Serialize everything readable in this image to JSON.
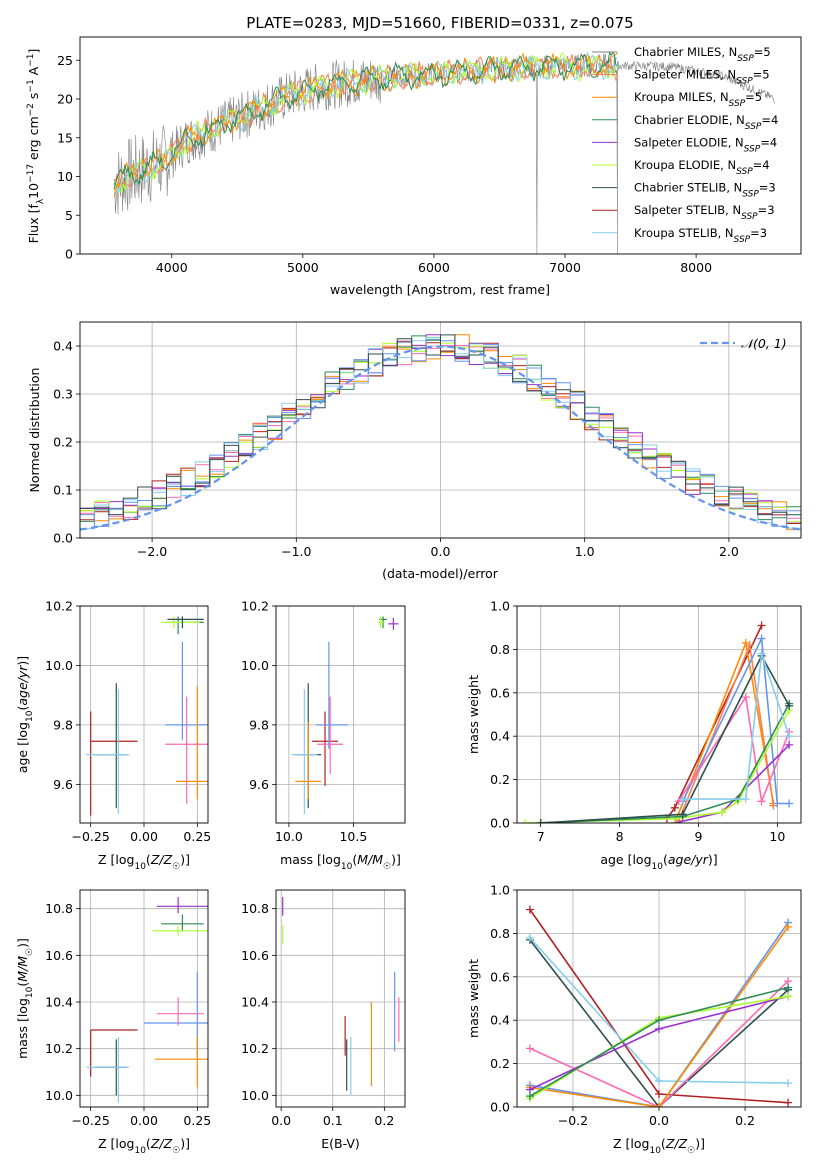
{
  "title": "PLATE=0283, MJD=51660, FIBERID=0331, z=0.075",
  "colors": {
    "C1": "#7f7f7f",
    "C2": "#ff7f50",
    "C3": "#ff8c00",
    "C4": "#2e8b57",
    "C5": "#9932cc",
    "C6": "#adff2f",
    "C7": "#2f4f4f",
    "C8": "#b22222",
    "C9": "#87ceeb",
    "gauss": "#6495ed",
    "pink": "#ff69b4",
    "blue": "#6495ed"
  },
  "chart_data": [
    {
      "id": "spectrum",
      "type": "line",
      "xlabel": "wavelength [Angstrom, rest frame]",
      "ylabel": "Flux [f_λ10^-17 erg cm^-2 s^-1 A^-1]",
      "xlim": [
        3300,
        8800
      ],
      "ylim": [
        0,
        28
      ],
      "xticks": [
        4000,
        5000,
        6000,
        7000,
        8000
      ],
      "yticks": [
        0,
        5,
        10,
        15,
        20,
        25
      ],
      "legend_position": "top-right",
      "legend": [
        {
          "name": "Chabrier MILES, N_SSP=5",
          "color": "C1"
        },
        {
          "name": "Salpeter MILES, N_SSP=5",
          "color": "C2"
        },
        {
          "name": "Kroupa MILES, N_SSP=5",
          "color": "C3"
        },
        {
          "name": "Chabrier ELODIE, N_SSP=4",
          "color": "C4"
        },
        {
          "name": "Salpeter ELODIE, N_SSP=4",
          "color": "C5"
        },
        {
          "name": "Kroupa ELODIE, N_SSP=4",
          "color": "C6"
        },
        {
          "name": "Chabrier STELIB, N_SSP=3",
          "color": "C7"
        },
        {
          "name": "Salpeter STELIB, N_SSP=3",
          "color": "C8"
        },
        {
          "name": "Kroupa STELIB, N_SSP=3",
          "color": "C9"
        }
      ],
      "continuum": [
        [
          3560,
          9
        ],
        [
          3650,
          10
        ],
        [
          3800,
          11
        ],
        [
          3950,
          12
        ],
        [
          4100,
          14.5
        ],
        [
          4300,
          16
        ],
        [
          4500,
          17.5
        ],
        [
          4700,
          19
        ],
        [
          4900,
          20.5
        ],
        [
          5100,
          21.5
        ],
        [
          5300,
          22
        ],
        [
          5500,
          22.5
        ],
        [
          5800,
          23
        ],
        [
          6200,
          23.5
        ],
        [
          6600,
          24
        ],
        [
          7000,
          24.2
        ],
        [
          7400,
          24.3
        ],
        [
          7800,
          24.2
        ],
        [
          8200,
          23
        ],
        [
          8600,
          20
        ]
      ]
    },
    {
      "id": "residuals",
      "type": "line",
      "xlabel": "(data-model)/error",
      "ylabel": "Normed distribution",
      "xlim": [
        -2.5,
        2.5
      ],
      "ylim": [
        0,
        0.45
      ],
      "xticks": [
        -2,
        -1,
        0,
        1,
        2
      ],
      "yticks": [
        0.0,
        0.1,
        0.2,
        0.3,
        0.4
      ],
      "legend": [
        "𝒩(0, 1)"
      ],
      "hist_bin_width": 0.1,
      "hist_colors": [
        "#ff69b4",
        "#ff8c00",
        "#2e8b57",
        "#9932cc",
        "#adff2f",
        "#b22222",
        "#87ceeb",
        "#6495ed",
        "#2f4f4f"
      ]
    },
    {
      "id": "age_vs_Z",
      "type": "scatter",
      "xlabel": "Z [log10(Z/Z☉)]",
      "ylabel": "age [log10(age/yr)]",
      "xlim": [
        -0.3,
        0.3
      ],
      "ylim": [
        9.47,
        10.2
      ],
      "xticks": [
        -0.25,
        0.0,
        0.25
      ],
      "yticks": [
        9.6,
        9.8,
        10.0,
        10.2
      ],
      "points": [
        {
          "x": -0.25,
          "y": 9.745,
          "xerr": [
            0,
            0.22
          ],
          "yerr": [
            0.25,
            0.1
          ],
          "c": "C8"
        },
        {
          "x": -0.13,
          "y": 9.7,
          "xerr": [
            0.1,
            0.05
          ],
          "yerr": [
            0.18,
            0.24
          ],
          "c": "C7"
        },
        {
          "x": -0.12,
          "y": 9.7,
          "xerr": [
            0.15,
            0.05
          ],
          "yerr": [
            0.2,
            0.22
          ],
          "c": "C9"
        },
        {
          "x": 0.18,
          "y": 9.8,
          "xerr": [
            0.08,
            0.12
          ],
          "yerr": [
            0.05,
            0.28
          ],
          "c": "blue"
        },
        {
          "x": 0.2,
          "y": 9.735,
          "xerr": [
            0.1,
            0.1
          ],
          "yerr": [
            0.2,
            0.16
          ],
          "c": "pink"
        },
        {
          "x": 0.25,
          "y": 9.61,
          "xerr": [
            0.1,
            0.05
          ],
          "yerr": [
            0.06,
            0.32
          ],
          "c": "C3"
        },
        {
          "x": 0.16,
          "y": 10.145,
          "xerr": [
            0.05,
            0.12
          ],
          "yerr": [
            0.04,
            0.02
          ],
          "c": "C4"
        },
        {
          "x": 0.14,
          "y": 10.145,
          "xerr": [
            0.06,
            0.12
          ],
          "yerr": [
            0.02,
            0.02
          ],
          "c": "C6"
        },
        {
          "x": 0.18,
          "y": 10.155,
          "xerr": [
            0.07,
            0.1
          ],
          "yerr": [
            0.03,
            0.01
          ],
          "c": "C7"
        }
      ]
    },
    {
      "id": "age_vs_mass",
      "type": "scatter",
      "xlabel": "mass [log10(M/M☉)]",
      "xlim": [
        9.9,
        10.9
      ],
      "ylim": [
        9.47,
        10.2
      ],
      "xticks": [
        10.0,
        10.5
      ],
      "yticks": [
        9.6,
        9.8,
        10.0,
        10.2
      ],
      "points": [
        {
          "x": 10.15,
          "y": 9.7,
          "xerr": [
            0.1,
            0.1
          ],
          "yerr": [
            0.18,
            0.24
          ],
          "c": "C7"
        },
        {
          "x": 10.12,
          "y": 9.7,
          "xerr": [
            0.1,
            0.1
          ],
          "yerr": [
            0.2,
            0.22
          ],
          "c": "C9"
        },
        {
          "x": 10.28,
          "y": 9.745,
          "xerr": [
            0.1,
            0.1
          ],
          "yerr": [
            0.15,
            0.1
          ],
          "c": "C8"
        },
        {
          "x": 10.32,
          "y": 9.735,
          "xerr": [
            0.1,
            0.1
          ],
          "yerr": [
            0.1,
            0.16
          ],
          "c": "pink"
        },
        {
          "x": 10.31,
          "y": 9.8,
          "xerr": [
            0.1,
            0.15
          ],
          "yerr": [
            0.08,
            0.28
          ],
          "c": "blue"
        },
        {
          "x": 10.15,
          "y": 9.61,
          "xerr": [
            0.1,
            0.1
          ],
          "yerr": [
            0.06,
            0.2
          ],
          "c": "C3"
        },
        {
          "x": 10.73,
          "y": 10.155,
          "xerr": [
            0.03,
            0.03
          ],
          "yerr": [
            0.03,
            0.01
          ],
          "c": "C4"
        },
        {
          "x": 10.71,
          "y": 10.145,
          "xerr": [
            0.02,
            0.02
          ],
          "yerr": [
            0.02,
            0.02
          ],
          "c": "C6"
        },
        {
          "x": 10.81,
          "y": 10.14,
          "xerr": [
            0.04,
            0.04
          ],
          "yerr": [
            0.02,
            0.02
          ],
          "c": "C5"
        }
      ]
    },
    {
      "id": "weight_vs_age",
      "type": "line",
      "xlabel": "age [log10(age/yr)]",
      "ylabel": "mass weight",
      "xlim": [
        6.7,
        10.3
      ],
      "ylim": [
        0,
        1
      ],
      "xticks": [
        7,
        8,
        9,
        10
      ],
      "yticks": [
        0.0,
        0.2,
        0.4,
        0.6,
        0.8,
        1.0
      ],
      "series": [
        {
          "c": "C8",
          "x": [
            8.6,
            8.7,
            9.8
          ],
          "y": [
            0.02,
            0.07,
            0.91
          ]
        },
        {
          "c": "C3",
          "x": [
            8.7,
            9.6,
            9.95
          ],
          "y": [
            0.0,
            0.83,
            0.09
          ]
        },
        {
          "c": "C2",
          "x": [
            8.75,
            9.65,
            9.95
          ],
          "y": [
            0.01,
            0.82,
            0.08
          ]
        },
        {
          "c": "blue",
          "x": [
            8.8,
            9.8,
            10.0,
            10.15
          ],
          "y": [
            0.1,
            0.85,
            0.09,
            0.09
          ]
        },
        {
          "c": "pink",
          "x": [
            8.75,
            9.6,
            9.8,
            10.15
          ],
          "y": [
            0.1,
            0.58,
            0.1,
            0.42
          ]
        },
        {
          "c": "C5",
          "x": [
            8.7,
            9.3,
            10.15
          ],
          "y": [
            0.0,
            0.05,
            0.36
          ]
        },
        {
          "c": "C6",
          "x": [
            6.8,
            8.7,
            9.3,
            9.5,
            10.15
          ],
          "y": [
            0.0,
            0.02,
            0.05,
            0.1,
            0.52
          ]
        },
        {
          "c": "C4",
          "x": [
            7.0,
            8.8,
            9.5,
            10.15
          ],
          "y": [
            0.0,
            0.03,
            0.11,
            0.55
          ]
        },
        {
          "c": "C7",
          "x": [
            7.0,
            8.8,
            9.8,
            10.15
          ],
          "y": [
            0.0,
            0.04,
            0.77,
            0.54
          ]
        },
        {
          "c": "C9",
          "x": [
            8.8,
            9.6,
            9.8,
            10.15
          ],
          "y": [
            0.11,
            0.11,
            0.78,
            0.4
          ]
        }
      ]
    },
    {
      "id": "mass_vs_Z",
      "type": "scatter",
      "xlabel": "Z [log10(Z/Z☉)]",
      "ylabel": "mass [log10(M/M☉)]",
      "xlim": [
        -0.3,
        0.3
      ],
      "ylim": [
        9.95,
        10.88
      ],
      "xticks": [
        -0.25,
        0.0,
        0.25
      ],
      "yticks": [
        10.0,
        10.2,
        10.4,
        10.6,
        10.8
      ],
      "points": [
        {
          "x": -0.25,
          "y": 10.28,
          "xerr": [
            0,
            0.22
          ],
          "yerr": [
            0.2,
            0.0
          ],
          "c": "C8"
        },
        {
          "x": -0.13,
          "y": 10.12,
          "xerr": [
            0.1,
            0.05
          ],
          "yerr": [
            0.12,
            0.12
          ],
          "c": "C7"
        },
        {
          "x": -0.12,
          "y": 10.12,
          "xerr": [
            0.15,
            0.05
          ],
          "yerr": [
            0.15,
            0.13
          ],
          "c": "C9"
        },
        {
          "x": 0.25,
          "y": 10.31,
          "xerr": [
            0.25,
            0.05
          ],
          "yerr": [
            0.14,
            0.22
          ],
          "c": "blue"
        },
        {
          "x": 0.16,
          "y": 10.35,
          "xerr": [
            0.1,
            0.12
          ],
          "yerr": [
            0.05,
            0.07
          ],
          "c": "pink"
        },
        {
          "x": 0.25,
          "y": 10.155,
          "xerr": [
            0.2,
            0.05
          ],
          "yerr": [
            0.12,
            0.1
          ],
          "c": "C3"
        },
        {
          "x": 0.16,
          "y": 10.81,
          "xerr": [
            0.1,
            0.15
          ],
          "yerr": [
            0.03,
            0.04
          ],
          "c": "C5"
        },
        {
          "x": 0.18,
          "y": 10.735,
          "xerr": [
            0.1,
            0.1
          ],
          "yerr": [
            0.03,
            0.04
          ],
          "c": "C4"
        },
        {
          "x": 0.16,
          "y": 10.705,
          "xerr": [
            0.12,
            0.14
          ],
          "yerr": [
            0.02,
            0.02
          ],
          "c": "C6"
        }
      ]
    },
    {
      "id": "mass_vs_EBV",
      "type": "scatter",
      "xlabel": "E(B-V)",
      "xlim": [
        -0.01,
        0.24
      ],
      "ylim": [
        9.95,
        10.88
      ],
      "xticks": [
        0.0,
        0.1,
        0.2
      ],
      "yticks": [
        10.0,
        10.2,
        10.4,
        10.6,
        10.8
      ],
      "points": [
        {
          "x": 0.003,
          "y": 10.79,
          "yerr": [
            0.02,
            0.06
          ],
          "c": "C5"
        },
        {
          "x": 0.003,
          "y": 10.73,
          "yerr": [
            0.08,
            0.0
          ],
          "c": "C6"
        },
        {
          "x": 0.124,
          "y": 10.22,
          "yerr": [
            0.05,
            0.12
          ],
          "c": "C8"
        },
        {
          "x": 0.127,
          "y": 10.12,
          "yerr": [
            0.1,
            0.12
          ],
          "c": "C7"
        },
        {
          "x": 0.135,
          "y": 10.12,
          "yerr": [
            0.12,
            0.13
          ],
          "c": "C9"
        },
        {
          "x": 0.175,
          "y": 10.22,
          "yerr": [
            0.18,
            0.18
          ],
          "c": "C3"
        },
        {
          "x": 0.22,
          "y": 10.36,
          "yerr": [
            0.17,
            0.17
          ],
          "c": "blue"
        },
        {
          "x": 0.228,
          "y": 10.29,
          "yerr": [
            0.06,
            0.13
          ],
          "c": "pink"
        }
      ]
    },
    {
      "id": "weight_vs_Z",
      "type": "line",
      "xlabel": "Z [log10(Z/Z☉)]",
      "ylabel": "mass weight",
      "xlim": [
        -0.33,
        0.33
      ],
      "ylim": [
        0,
        1
      ],
      "xticks": [
        -0.2,
        0.0,
        0.2
      ],
      "yticks": [
        0.0,
        0.2,
        0.4,
        0.6,
        0.8,
        1.0
      ],
      "series": [
        {
          "c": "C8",
          "x": [
            -0.3,
            0.0,
            0.3
          ],
          "y": [
            0.91,
            0.06,
            0.02
          ]
        },
        {
          "c": "C7",
          "x": [
            -0.3,
            0.0,
            0.3
          ],
          "y": [
            0.77,
            0.0,
            0.54
          ]
        },
        {
          "c": "C9",
          "x": [
            -0.3,
            0.0,
            0.0,
            0.3
          ],
          "y": [
            0.78,
            0.12,
            0.12,
            0.11
          ]
        },
        {
          "c": "blue",
          "x": [
            -0.3,
            0.0,
            0.3
          ],
          "y": [
            0.1,
            0.0,
            0.85
          ]
        },
        {
          "c": "pink",
          "x": [
            -0.3,
            0.0,
            0.3
          ],
          "y": [
            0.27,
            0.0,
            0.58
          ]
        },
        {
          "c": "C3",
          "x": [
            -0.3,
            0.0,
            0.3
          ],
          "y": [
            0.09,
            0.0,
            0.83
          ]
        },
        {
          "c": "C5",
          "x": [
            -0.3,
            0.0,
            0.3
          ],
          "y": [
            0.08,
            0.36,
            0.51
          ]
        },
        {
          "c": "C6",
          "x": [
            -0.3,
            0.0,
            0.3
          ],
          "y": [
            0.04,
            0.41,
            0.51
          ]
        },
        {
          "c": "C4",
          "x": [
            -0.3,
            0.0,
            0.3
          ],
          "y": [
            0.05,
            0.4,
            0.55
          ]
        }
      ]
    }
  ]
}
